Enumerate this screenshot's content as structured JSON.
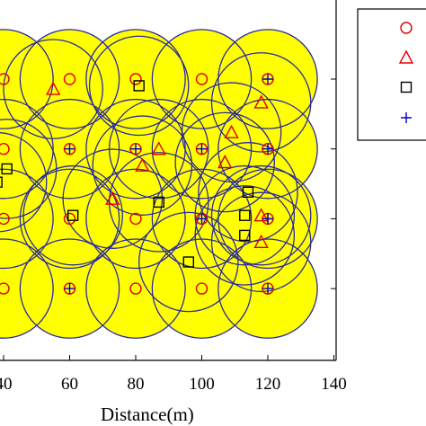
{
  "chart_data": {
    "type": "scatter",
    "title": "",
    "xlabel": "Distance(m)",
    "ylabel": "",
    "xlim": [
      37,
      140
    ],
    "x_ticks": [
      40,
      60,
      80,
      100,
      120,
      140
    ],
    "x_tick_labels": [
      "40",
      "60",
      "80",
      "100",
      "120",
      "140"
    ],
    "grid": false,
    "legend": {
      "placement": "top-right",
      "entries": [
        "",
        "",
        "",
        ""
      ]
    },
    "coverage_radius": 15,
    "series": [
      {
        "marker": "circle",
        "color": "#e00000",
        "points": [
          [
            40,
            137
          ],
          [
            60,
            137
          ],
          [
            80,
            137
          ],
          [
            100,
            137
          ],
          [
            120,
            137
          ],
          [
            40,
            116
          ],
          [
            60,
            116
          ],
          [
            80,
            116
          ],
          [
            100,
            116
          ],
          [
            120,
            116
          ],
          [
            40,
            95
          ],
          [
            60,
            95
          ],
          [
            80,
            95
          ],
          [
            100,
            95
          ],
          [
            120,
            95
          ],
          [
            40,
            74
          ],
          [
            60,
            74
          ],
          [
            80,
            74
          ],
          [
            100,
            74
          ],
          [
            120,
            74
          ]
        ]
      },
      {
        "marker": "triangle",
        "color": "#e00000",
        "points": [
          [
            55,
            134
          ],
          [
            118,
            130
          ],
          [
            109,
            121
          ],
          [
            87,
            116
          ],
          [
            82,
            111
          ],
          [
            107,
            112
          ],
          [
            73,
            101
          ],
          [
            118,
            96
          ],
          [
            118,
            88
          ]
        ]
      },
      {
        "marker": "square",
        "color": "#000000",
        "points": [
          [
            81,
            135
          ],
          [
            41,
            110
          ],
          [
            38,
            106
          ],
          [
            87,
            100
          ],
          [
            114,
            103
          ],
          [
            61,
            96
          ],
          [
            113,
            96
          ],
          [
            113,
            90
          ],
          [
            96,
            82
          ]
        ]
      },
      {
        "marker": "plus",
        "color": "#0000cc",
        "points": [
          [
            120,
            137
          ],
          [
            60,
            116
          ],
          [
            80,
            116
          ],
          [
            100,
            116
          ],
          [
            120,
            116
          ],
          [
            120,
            95
          ],
          [
            60,
            74
          ],
          [
            120,
            74
          ],
          [
            100,
            95
          ],
          [
            120,
            95
          ]
        ]
      }
    ]
  }
}
